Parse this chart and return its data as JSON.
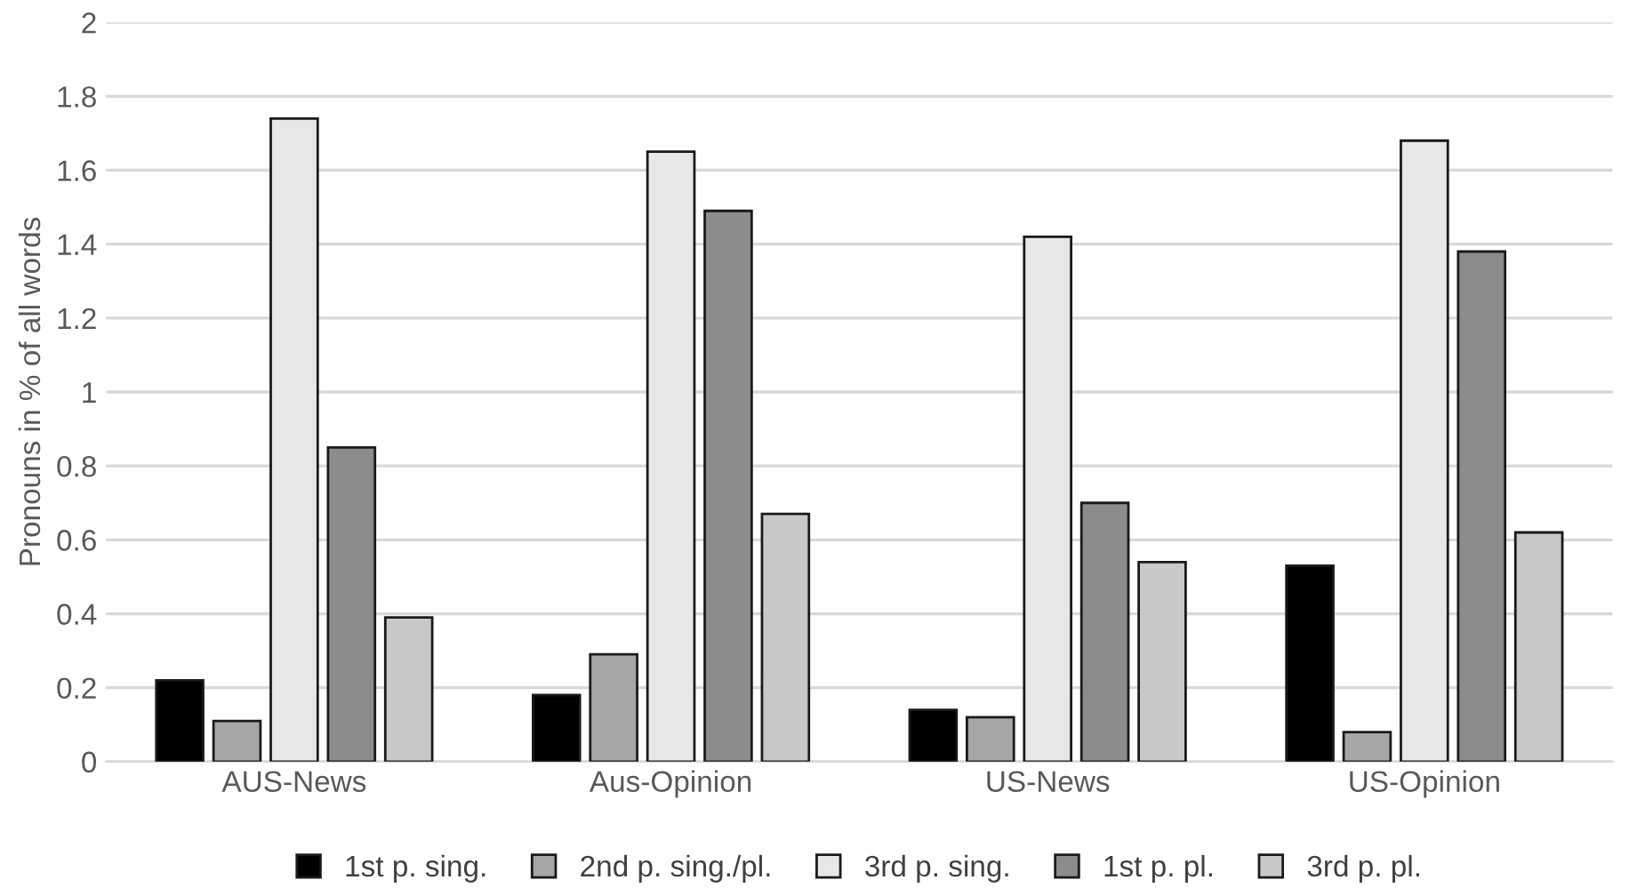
{
  "chart_data": {
    "type": "bar",
    "ylabel": "Pronouns in % of all words",
    "categories": [
      "AUS-News",
      "Aus-Opinion",
      "US-News",
      "US-Opinion"
    ],
    "series": [
      {
        "name": "1st p. sing.",
        "color": "#000000",
        "values": [
          0.22,
          0.18,
          0.14,
          0.53
        ]
      },
      {
        "name": "2nd p. sing./pl.",
        "color": "#a6a6a6",
        "values": [
          0.11,
          0.29,
          0.12,
          0.08
        ]
      },
      {
        "name": "3rd p. sing.",
        "color": "#e7e7e7",
        "values": [
          1.74,
          1.65,
          1.42,
          1.68
        ]
      },
      {
        "name": "1st p. pl.",
        "color": "#8c8c8c",
        "values": [
          0.85,
          1.49,
          0.7,
          1.38
        ]
      },
      {
        "name": "3rd p. pl.",
        "color": "#c8c8c8",
        "values": [
          0.39,
          0.67,
          0.54,
          0.62
        ]
      }
    ],
    "ylim": [
      0,
      2
    ],
    "yticks": [
      0,
      0.2,
      0.4,
      0.6,
      0.8,
      1,
      1.2,
      1.4,
      1.6,
      1.8,
      2
    ],
    "grid": "y",
    "legend": "bottom"
  }
}
